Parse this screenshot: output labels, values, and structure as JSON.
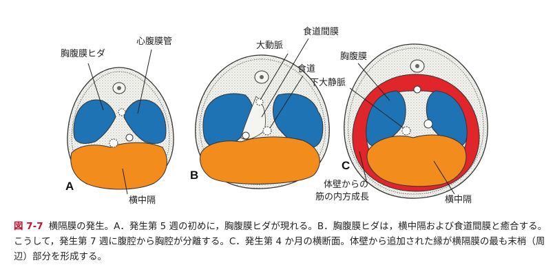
{
  "panels": {
    "a": {
      "letter": "A"
    },
    "b": {
      "letter": "B"
    },
    "c": {
      "letter": "C"
    }
  },
  "labels": {
    "pleuroperitoneal_fold": "胸腹膜ヒダ",
    "pericardioperitoneal_canal": "心腹膜管",
    "septum_transversum_a": "横中隔",
    "mesoesophagus": "食道間膜",
    "aorta": "大動脈",
    "esophagus": "食道",
    "pleuroperitoneal_membrane": "胸腹膜",
    "ivc": "下大静脈",
    "body_wall_line1": "体壁からの",
    "body_wall_line2": "筋の内方成長",
    "septum_transversum_c": "横中隔"
  },
  "caption": {
    "figure_number": "図 7-7",
    "text": "横隔膜の発生。A．発生第 5 週の初めに，胸腹膜ヒダが現れる。B．胸腹膜ヒダは，横中隔および食道間膜と癒合する。こうして，発生第 7 週に腹腔から胸腔が分離する。C．発生第 4 か月の横断面。体壁から追加された縁が横隔膜の最も末梢（周辺）部分を形成する。"
  },
  "colors": {
    "pleural_cavity_blue": "#1e73b4",
    "septum_orange": "#f28c1c",
    "body_wall_muscle_red": "#e0262b",
    "caption_accent": "#c8102e"
  }
}
